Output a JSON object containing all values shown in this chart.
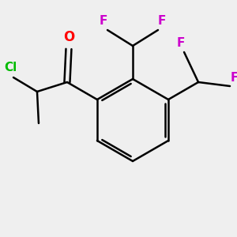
{
  "background_color": "#efefef",
  "bond_color": "#000000",
  "bond_width": 1.8,
  "atom_colors": {
    "O": "#ff0000",
    "Cl": "#00bb00",
    "F": "#cc00cc"
  },
  "font_size": 11
}
